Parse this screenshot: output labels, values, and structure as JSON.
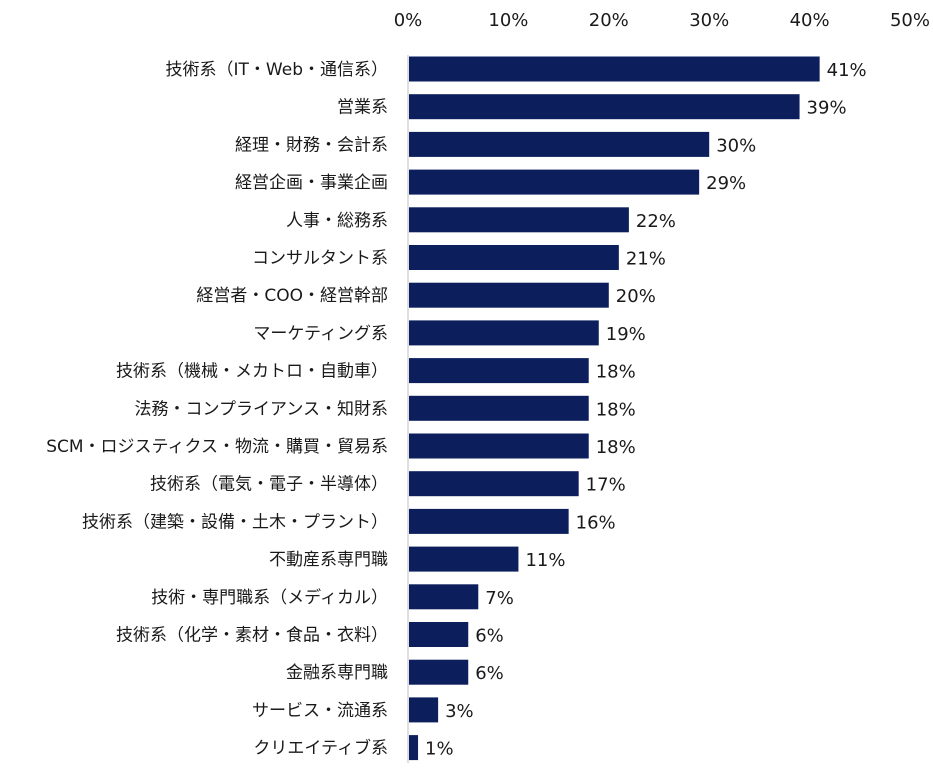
{
  "chart_data": {
    "type": "bar",
    "orientation": "horizontal",
    "categories": [
      "技術系（IT・Web・通信系）",
      "営業系",
      "経理・財務・会計系",
      "経営企画・事業企画",
      "人事・総務系",
      "コンサルタント系",
      "経営者・COO・経営幹部",
      "マーケティング系",
      "技術系（機械・メカトロ・自動車）",
      "法務・コンプライアンス・知財系",
      "SCM・ロジスティクス・物流・購買・貿易系",
      "技術系（電気・電子・半導体）",
      "技術系（建築・設備・土木・プラント）",
      "不動産系専門職",
      "技術・専門職系（メディカル）",
      "技術系（化学・素材・食品・衣料）",
      "金融系専門職",
      "サービス・流通系",
      "クリエイティブ系"
    ],
    "values": [
      41,
      39,
      30,
      29,
      22,
      21,
      20,
      19,
      18,
      18,
      18,
      17,
      16,
      11,
      7,
      6,
      6,
      3,
      1
    ],
    "value_labels": [
      "41%",
      "39%",
      "30%",
      "29%",
      "22%",
      "21%",
      "20%",
      "19%",
      "18%",
      "18%",
      "18%",
      "17%",
      "16%",
      "11%",
      "7%",
      "6%",
      "6%",
      "3%",
      "1%"
    ],
    "x_ticks": [
      "0%",
      "10%",
      "20%",
      "30%",
      "40%",
      "50%"
    ],
    "xlim": [
      0,
      50
    ],
    "axis_position": "top",
    "grid": false,
    "legend": "none",
    "bar_color": "#0c1f5c",
    "title": "",
    "xlabel": "",
    "ylabel": ""
  }
}
